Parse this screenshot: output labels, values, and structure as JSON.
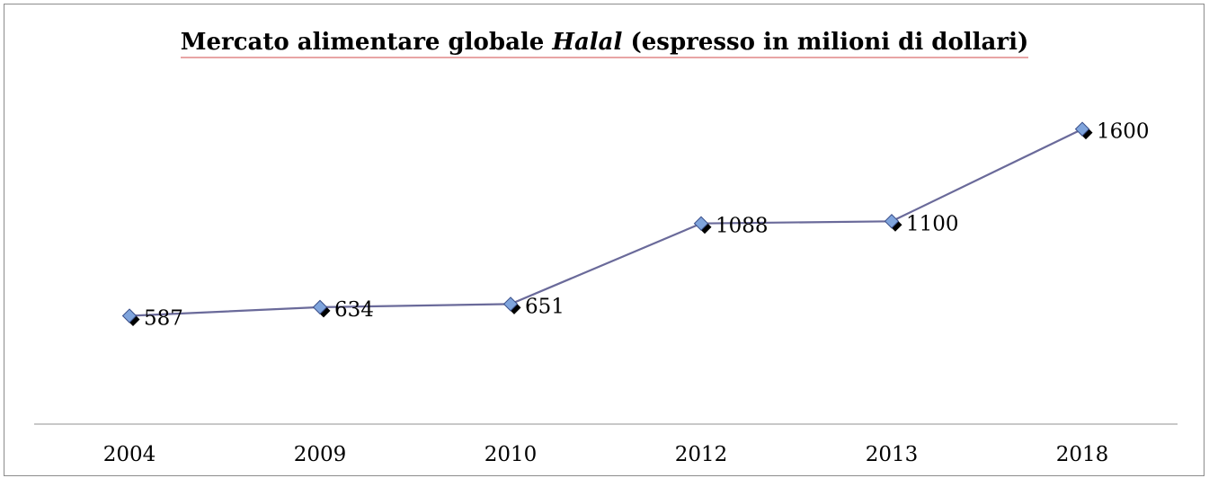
{
  "chart_data": {
    "type": "line",
    "title_parts": [
      "Mercato alimentare globale ",
      "Halal",
      " (espresso in milioni di dollari)"
    ],
    "categories": [
      "2004",
      "2009",
      "2010",
      "2012",
      "2013",
      "2018"
    ],
    "series": [
      {
        "values": [
          587,
          634,
          651,
          1088,
          1100,
          1600
        ]
      }
    ],
    "data_labels": [
      "587",
      "634",
      "651",
      "1088",
      "1100",
      "1600"
    ],
    "xlabel": "",
    "ylabel": "",
    "ylim": [
      0,
      2300
    ],
    "grid": false,
    "legend": "none",
    "colors": {
      "line": "#6a6a9a",
      "marker_fill": "#7fa4dc",
      "marker_edge": "#3a4f8a",
      "marker_shadow": "#000000",
      "axis": "#a6a6a6",
      "frame": "#8c8c8c"
    }
  }
}
